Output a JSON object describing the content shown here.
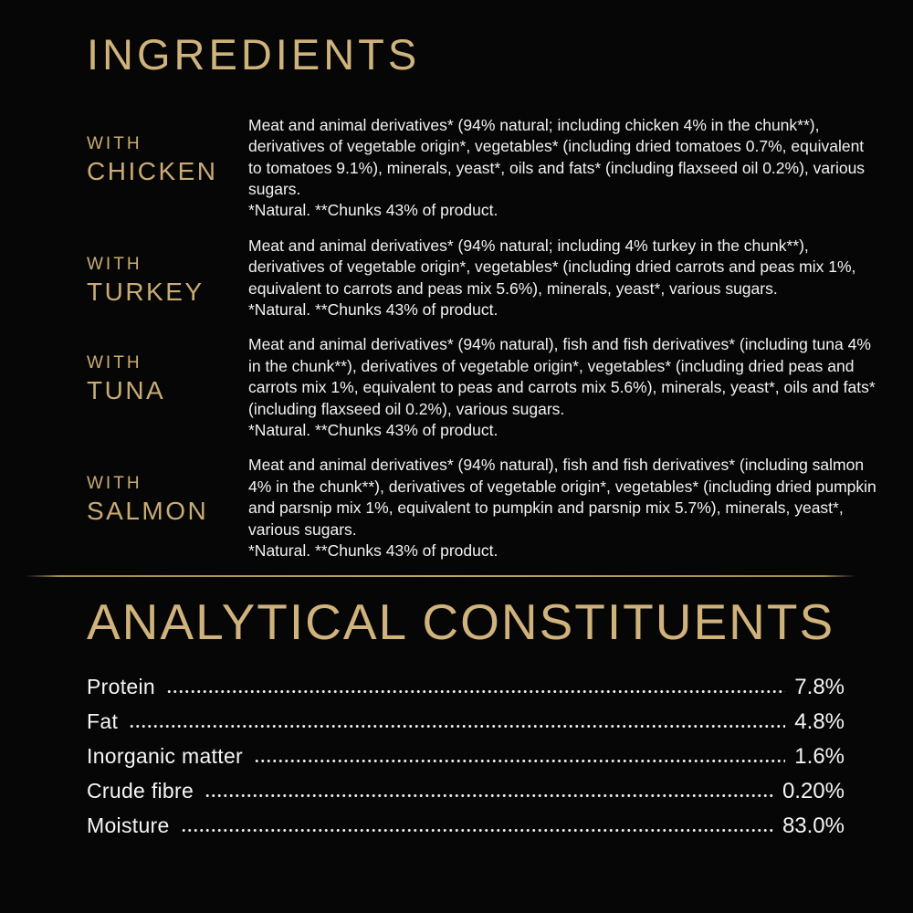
{
  "page": {
    "background_color": "#060606",
    "accent_gold": "#cfb37c",
    "body_text_color": "#f2f2f2"
  },
  "ingredients": {
    "title": "INGREDIENTS",
    "sections": [
      {
        "prefix": "WITH",
        "name": "CHICKEN",
        "text": "Meat and animal derivatives* (94% natural; including chicken 4% in the chunk**), derivatives of vegetable origin*, vegetables* (including dried tomatoes 0.7%, equivalent to tomatoes 9.1%), minerals, yeast*, oils and fats* (including flaxseed oil 0.2%), various sugars.",
        "footnote": "*Natural. **Chunks 43% of product."
      },
      {
        "prefix": "WITH",
        "name": "TURKEY",
        "text": "Meat and animal derivatives* (94% natural; including 4% turkey in the chunk**), derivatives of vegetable origin*, vegetables* (including dried carrots and peas mix 1%, equivalent to carrots and peas mix 5.6%), minerals, yeast*, various sugars.",
        "footnote": "*Natural. **Chunks 43% of product."
      },
      {
        "prefix": "WITH",
        "name": "TUNA",
        "text": "Meat and animal derivatives* (94% natural), fish and fish derivatives* (including tuna 4% in the chunk**), derivatives of vegetable origin*, vegetables* (including dried peas and carrots mix 1%, equivalent to peas and carrots mix 5.6%), minerals, yeast*, oils and fats* (including flaxseed oil 0.2%), various sugars.",
        "footnote": "*Natural. **Chunks 43% of product."
      },
      {
        "prefix": "WITH",
        "name": "SALMON",
        "text": "Meat and animal derivatives* (94% natural), fish and fish derivatives* (including salmon 4% in the chunk**), derivatives of vegetable origin*, vegetables* (including dried pumpkin and parsnip mix 1%, equivalent to pumpkin and parsnip mix 5.7%), minerals, yeast*, various sugars.",
        "footnote": "*Natural. **Chunks 43% of product."
      }
    ]
  },
  "analytical": {
    "title": "ANALYTICAL CONSTITUENTS",
    "rows": [
      {
        "label": "Protein",
        "value": "7.8%"
      },
      {
        "label": "Fat",
        "value": "4.8%"
      },
      {
        "label": "Inorganic matter",
        "value": "1.6%"
      },
      {
        "label": "Crude fibre",
        "value": "0.20%"
      },
      {
        "label": "Moisture",
        "value": "83.0%"
      }
    ]
  }
}
